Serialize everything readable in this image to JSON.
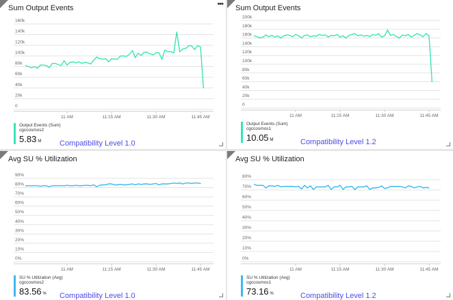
{
  "panels": [
    {
      "title": "Sum Output Events",
      "legend_name": "Output Events (Sum)",
      "legend_resource": "cgccosmos2",
      "value": "5.83",
      "unit": "M",
      "note": "Compatibility Level 1.0",
      "color": "#36e6b5",
      "has_menu": true,
      "menu_icon": "ellipsis-icon"
    },
    {
      "title": "Sum Output Events",
      "legend_name": "Output Events (Sum)",
      "legend_resource": "cgccosmos1",
      "value": "10.05",
      "unit": "M",
      "note": "Compatibility Level 1.2",
      "color": "#36e6b5"
    },
    {
      "title": "Avg SU % Utilization",
      "legend_name": "SU % Utilization (Avg)",
      "legend_resource": "cgccosmos2",
      "value": "83.56",
      "unit": "%",
      "note": "Compatibility Level 1.0",
      "color": "#3bb8f0"
    },
    {
      "title": "Avg SU % Utilization",
      "legend_name": "SU % Utilization (Avg)",
      "legend_resource": "cgccosmos1",
      "value": "73.16",
      "unit": "%",
      "note": "Compatibility Level 1.2",
      "color": "#3bb8f0"
    }
  ],
  "chart_data": [
    {
      "type": "line",
      "x_ticks": [
        "11 AM",
        "11:15 AM",
        "11:30 AM",
        "11:45 AM"
      ],
      "y_ticks": [
        "0",
        "20k",
        "40k",
        "60k",
        "80k",
        "100k",
        "120k",
        "140k",
        "160k"
      ],
      "ylim": [
        0,
        160000
      ],
      "grid": true,
      "x": [
        "10:46",
        "10:47",
        "10:48",
        "10:49",
        "10:50",
        "10:51",
        "10:52",
        "10:53",
        "10:54",
        "10:55",
        "10:56",
        "10:57",
        "10:58",
        "10:59",
        "11:00",
        "11:01",
        "11:02",
        "11:03",
        "11:04",
        "11:05",
        "11:06",
        "11:07",
        "11:08",
        "11:09",
        "11:10",
        "11:11",
        "11:12",
        "11:13",
        "11:14",
        "11:15",
        "11:16",
        "11:17",
        "11:18",
        "11:19",
        "11:20",
        "11:21",
        "11:22",
        "11:23",
        "11:24",
        "11:25",
        "11:26",
        "11:27",
        "11:28",
        "11:29",
        "11:30",
        "11:31",
        "11:32",
        "11:33",
        "11:34",
        "11:35",
        "11:36",
        "11:37",
        "11:38",
        "11:39",
        "11:40",
        "11:41",
        "11:42",
        "11:43",
        "11:44",
        "11:45",
        "11:46"
      ],
      "values": [
        82000,
        80000,
        78000,
        80000,
        77000,
        83000,
        83000,
        82000,
        78000,
        86000,
        86000,
        84000,
        82000,
        91000,
        83000,
        88000,
        89000,
        87000,
        89000,
        86000,
        88000,
        87000,
        85000,
        92000,
        98000,
        95000,
        94000,
        95000,
        89000,
        95000,
        94000,
        94000,
        100000,
        100000,
        99000,
        103000,
        110000,
        97000,
        105000,
        101000,
        107000,
        107000,
        104000,
        102000,
        106000,
        106000,
        94000,
        111000,
        108000,
        108000,
        106000,
        145000,
        108000,
        113000,
        114000,
        119000,
        119000,
        112000,
        119000,
        117000,
        40000
      ]
    },
    {
      "type": "line",
      "x_ticks": [
        "11 AM",
        "11:15 AM",
        "11:30 AM",
        "11:45 AM"
      ],
      "y_ticks": [
        "0",
        "20k",
        "40k",
        "60k",
        "80k",
        "100k",
        "120k",
        "140k",
        "160k",
        "180k",
        "200k"
      ],
      "ylim": [
        0,
        200000
      ],
      "grid": true,
      "x": [
        "10:46",
        "10:47",
        "10:48",
        "10:49",
        "10:50",
        "10:51",
        "10:52",
        "10:53",
        "10:54",
        "10:55",
        "10:56",
        "10:57",
        "10:58",
        "10:59",
        "11:00",
        "11:01",
        "11:02",
        "11:03",
        "11:04",
        "11:05",
        "11:06",
        "11:07",
        "11:08",
        "11:09",
        "11:10",
        "11:11",
        "11:12",
        "11:13",
        "11:14",
        "11:15",
        "11:16",
        "11:17",
        "11:18",
        "11:19",
        "11:20",
        "11:21",
        "11:22",
        "11:23",
        "11:24",
        "11:25",
        "11:26",
        "11:27",
        "11:28",
        "11:29",
        "11:30",
        "11:31",
        "11:32",
        "11:33",
        "11:34",
        "11:35",
        "11:36",
        "11:37",
        "11:38",
        "11:39",
        "11:40",
        "11:41",
        "11:42",
        "11:43",
        "11:44",
        "11:45",
        "11:46"
      ],
      "values": [
        165000,
        163000,
        160000,
        162000,
        167000,
        163000,
        166000,
        162000,
        165000,
        160000,
        165000,
        167000,
        166000,
        163000,
        168000,
        165000,
        160000,
        166000,
        167000,
        163000,
        165000,
        164000,
        168000,
        166000,
        167000,
        162000,
        166000,
        165000,
        168000,
        162000,
        165000,
        160000,
        166000,
        168000,
        170000,
        165000,
        167000,
        164000,
        166000,
        163000,
        168000,
        166000,
        170000,
        162000,
        165000,
        178000,
        166000,
        168000,
        163000,
        160000,
        167000,
        165000,
        168000,
        162000,
        166000,
        170000,
        167000,
        163000,
        170000,
        165000,
        60000
      ]
    },
    {
      "type": "line",
      "x_ticks": [
        "11 AM",
        "11:15 AM",
        "11:30 AM",
        "11:45 AM"
      ],
      "y_ticks": [
        "0%",
        "10%",
        "20%",
        "30%",
        "40%",
        "50%",
        "60%",
        "70%",
        "80%",
        "90%"
      ],
      "ylim": [
        0,
        90
      ],
      "grid": true,
      "x": [
        "10:46",
        "10:47",
        "10:48",
        "10:49",
        "10:50",
        "10:51",
        "10:52",
        "10:53",
        "10:54",
        "10:55",
        "10:56",
        "10:57",
        "10:58",
        "10:59",
        "11:00",
        "11:01",
        "11:02",
        "11:03",
        "11:04",
        "11:05",
        "11:06",
        "11:07",
        "11:08",
        "11:09",
        "11:10",
        "11:11",
        "11:12",
        "11:13",
        "11:14",
        "11:15",
        "11:16",
        "11:17",
        "11:18",
        "11:19",
        "11:20",
        "11:21",
        "11:22",
        "11:23",
        "11:24",
        "11:25",
        "11:26",
        "11:27",
        "11:28",
        "11:29",
        "11:30",
        "11:31",
        "11:32",
        "11:33",
        "11:34",
        "11:35",
        "11:36",
        "11:37",
        "11:38",
        "11:39",
        "11:40",
        "11:41",
        "11:42",
        "11:43",
        "11:44",
        "11:45"
      ],
      "values": [
        82,
        82,
        82,
        82,
        82,
        81.5,
        82,
        82,
        81,
        82,
        82,
        82,
        82,
        82,
        82.5,
        82,
        82,
        82.5,
        82,
        82,
        82.5,
        82.5,
        82,
        83,
        81,
        82.5,
        83,
        83,
        84,
        84,
        83,
        83,
        83.5,
        83,
        83,
        83.5,
        84,
        83,
        84,
        83.5,
        84,
        84,
        83.5,
        84,
        84.5,
        83,
        84,
        84,
        84,
        84.5,
        85,
        84.5,
        85,
        84,
        85,
        85,
        84.5,
        85,
        85,
        84.5
      ]
    },
    {
      "type": "line",
      "x_ticks": [
        "11 AM",
        "11:15 AM",
        "11:30 AM",
        "11:45 AM"
      ],
      "y_ticks": [
        "0%",
        "10%",
        "20%",
        "30%",
        "40%",
        "50%",
        "60%",
        "70%",
        "80%"
      ],
      "ylim": [
        0,
        80
      ],
      "grid": true,
      "x": [
        "10:46",
        "10:47",
        "10:48",
        "10:49",
        "10:50",
        "10:51",
        "10:52",
        "10:53",
        "10:54",
        "10:55",
        "10:56",
        "10:57",
        "10:58",
        "10:59",
        "11:00",
        "11:01",
        "11:02",
        "11:03",
        "11:04",
        "11:05",
        "11:06",
        "11:07",
        "11:08",
        "11:09",
        "11:10",
        "11:11",
        "11:12",
        "11:13",
        "11:14",
        "11:15",
        "11:16",
        "11:17",
        "11:18",
        "11:19",
        "11:20",
        "11:21",
        "11:22",
        "11:23",
        "11:24",
        "11:25",
        "11:26",
        "11:27",
        "11:28",
        "11:29",
        "11:30",
        "11:31",
        "11:32",
        "11:33",
        "11:34",
        "11:35",
        "11:36",
        "11:37",
        "11:38",
        "11:39",
        "11:40",
        "11:41",
        "11:42",
        "11:43",
        "11:44",
        "11:45"
      ],
      "values": [
        75.5,
        74.5,
        74.5,
        74.5,
        72,
        74,
        74,
        73.5,
        74.5,
        73,
        73.5,
        73.5,
        73.5,
        73.5,
        73,
        73.5,
        71,
        74.5,
        72,
        74,
        70.5,
        73,
        73,
        73,
        73,
        74.5,
        70.5,
        73,
        73,
        74.5,
        70.5,
        73,
        73,
        73.5,
        70.5,
        73,
        73,
        73,
        74,
        70.5,
        72,
        72,
        72.5,
        74,
        71.5,
        72,
        73.5,
        73.5,
        73.5,
        73.5,
        73,
        72,
        74,
        73.5,
        72,
        73,
        73.5,
        72,
        72.5,
        72
      ]
    }
  ]
}
